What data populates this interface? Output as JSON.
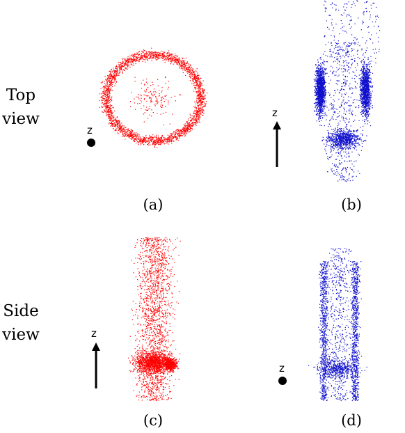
{
  "figure": {
    "row_labels": {
      "top": [
        "Top",
        "view"
      ],
      "side": [
        "Side",
        "view"
      ]
    },
    "captions": [
      "(a)",
      "(b)",
      "(c)",
      "(d)"
    ],
    "axis_label": "z",
    "colors": {
      "red_points": "#ff0000",
      "blue_points": "#1010cc",
      "axis": "#000000"
    }
  }
}
